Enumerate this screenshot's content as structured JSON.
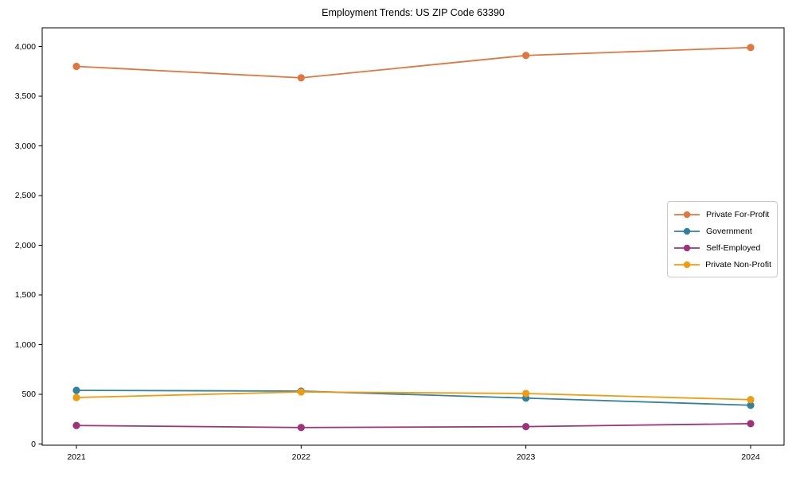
{
  "chart_data": {
    "type": "line",
    "title": "Employment Trends: US ZIP Code 63390",
    "xlabel": "",
    "ylabel": "",
    "categories": [
      "2021",
      "2022",
      "2023",
      "2024"
    ],
    "series": [
      {
        "name": "Private For-Profit",
        "color": "#e1763e",
        "values": [
          3800,
          3685,
          3910,
          3990
        ]
      },
      {
        "name": "Government",
        "color": "#31809e",
        "values": [
          540,
          532,
          462,
          390
        ]
      },
      {
        "name": "Self-Employed",
        "color": "#a0327a",
        "values": [
          186,
          166,
          175,
          205
        ]
      },
      {
        "name": "Private Non-Profit",
        "color": "#f09c0d",
        "values": [
          468,
          524,
          508,
          446
        ]
      }
    ],
    "ylim": [
      0,
      4188
    ],
    "yticks": [
      0,
      500,
      1000,
      1500,
      2000,
      2500,
      3000,
      3500,
      4000
    ],
    "ytick_labels": [
      "0",
      "500",
      "1,000",
      "1,500",
      "2,000",
      "2,500",
      "3,000",
      "3,500",
      "4,000"
    ],
    "legend_position": "center right",
    "grid": false,
    "marker": "circle",
    "axis_color": "#000000",
    "background_color": "#ffffff"
  }
}
